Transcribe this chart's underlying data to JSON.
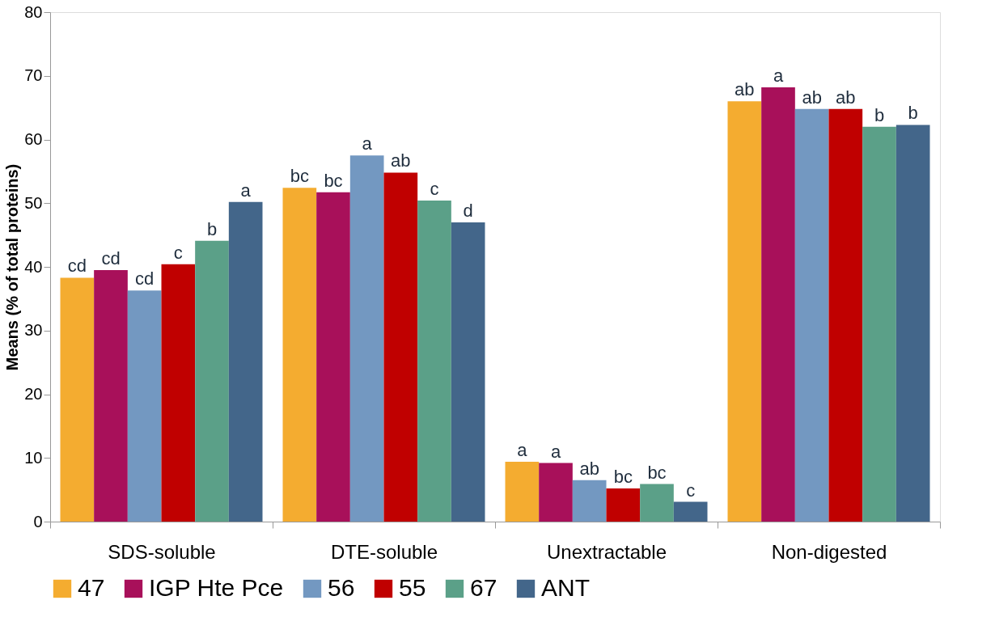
{
  "chart_data": {
    "type": "bar",
    "ylabel": "Means (% of total proteins)",
    "categories": [
      "SDS-soluble",
      "DTE-soluble",
      "Unextractable",
      "Non-digested"
    ],
    "ylim": [
      0,
      80
    ],
    "yticks": [
      0,
      10,
      20,
      30,
      40,
      50,
      60,
      70,
      80
    ],
    "grid": false,
    "legend": "bottom",
    "series": [
      {
        "name": "47",
        "color": "#f4ac30",
        "values": [
          38.3,
          52.4,
          9.4,
          66.0
        ],
        "value_labels": [
          "cd",
          "bc",
          "a",
          "ab"
        ]
      },
      {
        "name": "IGP Hte Pce",
        "color": "#a8105a",
        "values": [
          39.5,
          51.7,
          9.2,
          68.2
        ],
        "value_labels": [
          "cd",
          "bc",
          "a",
          "a"
        ]
      },
      {
        "name": "56",
        "color": "#7398c1",
        "values": [
          36.3,
          57.5,
          6.5,
          64.8
        ],
        "value_labels": [
          "cd",
          "a",
          "ab",
          "ab"
        ]
      },
      {
        "name": "55",
        "color": "#c00000",
        "values": [
          40.4,
          54.8,
          5.2,
          64.8
        ],
        "value_labels": [
          "c",
          "ab",
          "bc",
          "ab"
        ]
      },
      {
        "name": "67",
        "color": "#5ba088",
        "values": [
          44.1,
          50.4,
          5.9,
          62.0
        ],
        "value_labels": [
          "b",
          "c",
          "bc",
          "b"
        ]
      },
      {
        "name": "ANT",
        "color": "#43668a",
        "values": [
          50.2,
          47.0,
          3.1,
          62.3
        ],
        "value_labels": [
          "a",
          "d",
          "c",
          "b"
        ]
      }
    ]
  }
}
